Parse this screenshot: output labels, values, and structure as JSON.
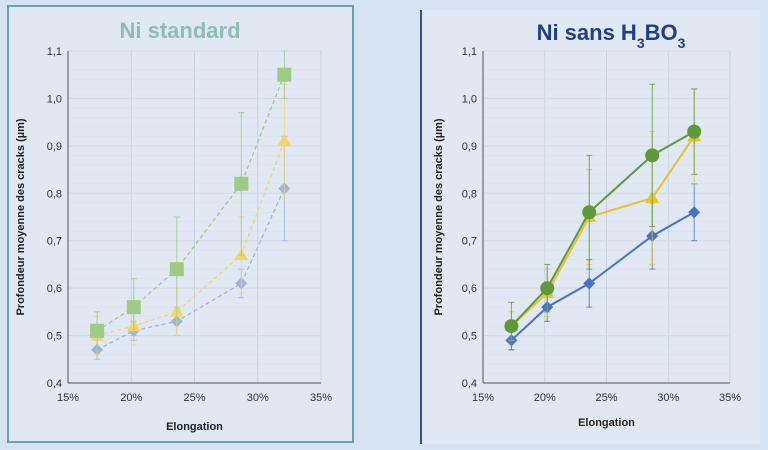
{
  "colors": {
    "blue": "#5b7fc7",
    "yellow": "#f2c94c",
    "green": "#8fbf6f",
    "green_dark": "#5f9a3a",
    "title_left": "#8fbdb0",
    "title_right": "#1f3f8a"
  },
  "chart_data": [
    {
      "type": "line",
      "title": "Ni standard",
      "xlabel": "Elongation",
      "ylabel": "Profondeur moyenne des cracks (µm)",
      "xlim": [
        0.15,
        0.35
      ],
      "ylim": [
        0.4,
        1.1
      ],
      "xticks": [
        0.15,
        0.2,
        0.25,
        0.3,
        0.35
      ],
      "xtick_labels": [
        "15%",
        "20%",
        "25%",
        "30%",
        "35%"
      ],
      "yticks": [
        0.4,
        0.5,
        0.6,
        0.7,
        0.8,
        0.9,
        1.0,
        1.1
      ],
      "ytick_labels": [
        "0,4",
        "0,5",
        "0,6",
        "0,7",
        "0,8",
        "0,9",
        "1,0",
        "1,1"
      ],
      "line_style": "dashed",
      "grid": true,
      "x": [
        0.173,
        0.202,
        0.236,
        0.287,
        0.321
      ],
      "series": [
        {
          "color": "#9fb3e0",
          "marker": "diamond",
          "values": [
            0.47,
            0.51,
            0.53,
            0.61,
            0.81
          ],
          "err": [
            0.02,
            0.02,
            0.03,
            0.03,
            0.11
          ]
        },
        {
          "color": "#f2d768",
          "marker": "triangle",
          "values": [
            0.5,
            0.52,
            0.55,
            0.67,
            0.91
          ],
          "err": [
            0.04,
            0.04,
            0.05,
            0.08,
            0.12
          ]
        },
        {
          "color": "#9ecb83",
          "marker": "square",
          "values": [
            0.51,
            0.56,
            0.64,
            0.82,
            1.05
          ],
          "err": [
            0.04,
            0.06,
            0.11,
            0.15,
            0.05
          ]
        }
      ]
    },
    {
      "type": "line",
      "title": "Ni sans H3BO3",
      "title_parts": [
        "Ni sans H",
        "3",
        "BO",
        "3"
      ],
      "xlabel": "Elongation",
      "ylabel": "Profondeur moyenne des cracks (µm)",
      "xlim": [
        0.15,
        0.35
      ],
      "ylim": [
        0.4,
        1.1
      ],
      "xticks": [
        0.15,
        0.2,
        0.25,
        0.3,
        0.35
      ],
      "xtick_labels": [
        "15%",
        "20%",
        "25%",
        "30%",
        "35%"
      ],
      "yticks": [
        0.4,
        0.5,
        0.6,
        0.7,
        0.8,
        0.9,
        1.0,
        1.1
      ],
      "ytick_labels": [
        "0,4",
        "0,5",
        "0,6",
        "0,7",
        "0,8",
        "0,9",
        "1,0",
        "1,1"
      ],
      "line_style": "solid",
      "grid": true,
      "x": [
        0.173,
        0.202,
        0.236,
        0.287,
        0.321
      ],
      "series": [
        {
          "color": "#4a72c4",
          "marker": "diamond",
          "values": [
            0.49,
            0.56,
            0.61,
            0.71,
            0.76
          ],
          "err": [
            0.02,
            0.03,
            0.05,
            0.07,
            0.06
          ]
        },
        {
          "color": "#e8c230",
          "marker": "triangle",
          "values": [
            0.52,
            0.59,
            0.75,
            0.79,
            0.92
          ],
          "err": [
            0.03,
            0.05,
            0.1,
            0.14,
            0.1
          ]
        },
        {
          "color": "#5f9a3a",
          "marker": "circle",
          "values": [
            0.52,
            0.6,
            0.76,
            0.88,
            0.93
          ],
          "err": [
            0.05,
            0.05,
            0.12,
            0.15,
            0.09
          ]
        }
      ]
    }
  ]
}
